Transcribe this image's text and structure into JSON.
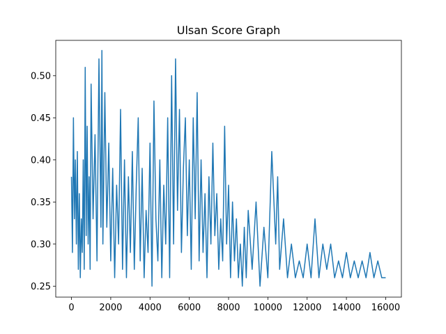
{
  "chart_data": {
    "type": "line",
    "title": "Ulsan Score Graph",
    "xlabel": "",
    "ylabel": "",
    "xlim": [
      -800,
      16800
    ],
    "ylim": [
      0.237,
      0.542
    ],
    "x_ticks": [
      0,
      2000,
      4000,
      6000,
      8000,
      10000,
      12000,
      14000,
      16000
    ],
    "x_tick_labels": [
      "0",
      "2000",
      "4000",
      "6000",
      "8000",
      "10000",
      "12000",
      "14000",
      "16000"
    ],
    "y_ticks": [
      0.25,
      0.3,
      0.35,
      0.4,
      0.45,
      0.5
    ],
    "y_tick_labels": [
      "0.25",
      "0.30",
      "0.35",
      "0.40",
      "0.45",
      "0.50"
    ],
    "grid": false,
    "series_color": "#1f77b4",
    "series": [
      {
        "x": [
          0,
          50,
          100,
          150,
          200,
          250,
          300,
          350,
          400,
          450,
          500,
          550,
          600,
          650,
          700,
          750,
          800,
          850,
          900,
          950,
          1000,
          1100,
          1200,
          1300,
          1400,
          1500,
          1550,
          1600,
          1700,
          1800,
          1900,
          2000,
          2100,
          2200,
          2300,
          2400,
          2500,
          2600,
          2700,
          2800,
          2900,
          3000,
          3100,
          3200,
          3300,
          3400,
          3500,
          3600,
          3700,
          3800,
          3900,
          4000,
          4100,
          4200,
          4300,
          4400,
          4500,
          4600,
          4700,
          4800,
          4900,
          5000,
          5100,
          5200,
          5300,
          5400,
          5500,
          5600,
          5700,
          5800,
          5900,
          6000,
          6100,
          6200,
          6300,
          6400,
          6500,
          6600,
          6700,
          6800,
          6900,
          7000,
          7100,
          7200,
          7300,
          7400,
          7500,
          7600,
          7700,
          7800,
          7900,
          8000,
          8100,
          8200,
          8300,
          8400,
          8500,
          8600,
          8700,
          8800,
          8900,
          9000,
          9200,
          9400,
          9600,
          9800,
          10000,
          10200,
          10400,
          10500,
          10600,
          10800,
          11000,
          11200,
          11400,
          11600,
          11800,
          12000,
          12200,
          12400,
          12600,
          12800,
          13000,
          13200,
          13400,
          13600,
          13800,
          14000,
          14200,
          14400,
          14600,
          14800,
          15000,
          15200,
          15400,
          15600,
          15800,
          16000
        ],
        "y": [
          0.38,
          0.29,
          0.45,
          0.33,
          0.4,
          0.3,
          0.41,
          0.27,
          0.36,
          0.26,
          0.33,
          0.29,
          0.4,
          0.27,
          0.51,
          0.31,
          0.44,
          0.3,
          0.38,
          0.27,
          0.49,
          0.33,
          0.43,
          0.28,
          0.52,
          0.32,
          0.53,
          0.3,
          0.48,
          0.32,
          0.42,
          0.28,
          0.39,
          0.26,
          0.37,
          0.3,
          0.46,
          0.27,
          0.4,
          0.26,
          0.38,
          0.29,
          0.41,
          0.27,
          0.37,
          0.45,
          0.28,
          0.39,
          0.26,
          0.34,
          0.29,
          0.42,
          0.25,
          0.47,
          0.33,
          0.28,
          0.4,
          0.26,
          0.37,
          0.3,
          0.45,
          0.26,
          0.5,
          0.3,
          0.52,
          0.34,
          0.46,
          0.29,
          0.39,
          0.45,
          0.31,
          0.4,
          0.27,
          0.45,
          0.33,
          0.48,
          0.28,
          0.4,
          0.29,
          0.36,
          0.26,
          0.38,
          0.3,
          0.42,
          0.31,
          0.36,
          0.27,
          0.33,
          0.28,
          0.44,
          0.3,
          0.37,
          0.26,
          0.35,
          0.28,
          0.33,
          0.26,
          0.3,
          0.25,
          0.32,
          0.26,
          0.34,
          0.27,
          0.35,
          0.25,
          0.32,
          0.26,
          0.41,
          0.3,
          0.38,
          0.27,
          0.33,
          0.26,
          0.3,
          0.26,
          0.28,
          0.26,
          0.3,
          0.26,
          0.33,
          0.26,
          0.3,
          0.27,
          0.3,
          0.26,
          0.28,
          0.26,
          0.29,
          0.26,
          0.28,
          0.26,
          0.28,
          0.26,
          0.29,
          0.26,
          0.28,
          0.26,
          0.26
        ]
      }
    ]
  }
}
